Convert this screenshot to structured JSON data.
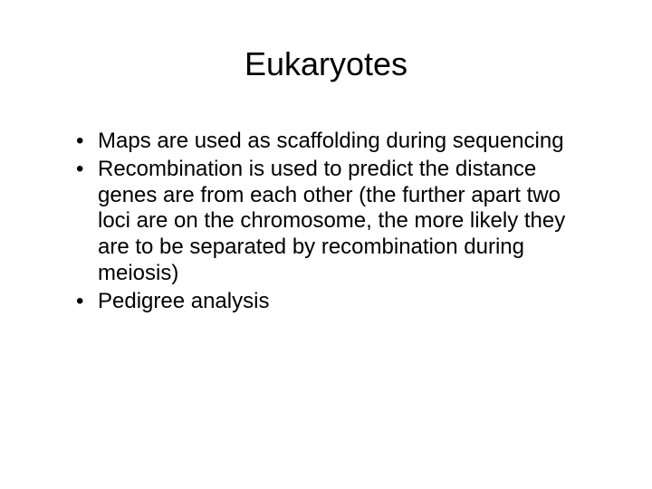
{
  "slide": {
    "title": "Eukaryotes",
    "title_fontsize": 36,
    "body_fontsize": 24,
    "background_color": "#ffffff",
    "text_color": "#000000",
    "font_family": "Arial",
    "bullets": [
      "Maps are used as scaffolding during sequencing",
      "Recombination is used to predict the distance genes are from each other (the further apart two loci are on the chromosome, the more likely they are to be separated by recombination during meiosis)",
      "Pedigree analysis"
    ]
  }
}
